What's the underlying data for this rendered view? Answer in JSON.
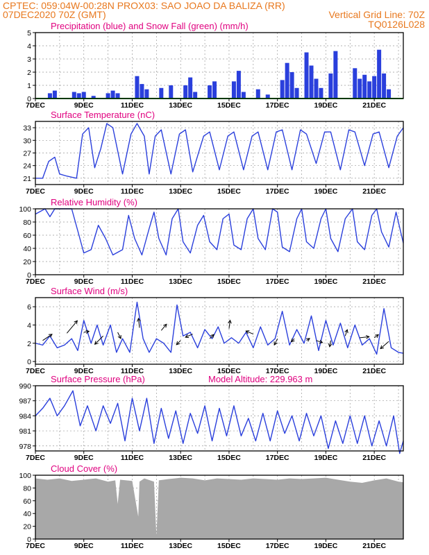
{
  "header": {
    "line1_left": "CPTEC:   059:04W-00:28N  PROX03: SAO JOAO DA BALIZA (RR)",
    "line2_left": "07DEC2020 70Z (GMT)",
    "line2_right": "Vertical Grid Line: 70Z",
    "line3_right": "TQ0126L028"
  },
  "colors": {
    "header": "#e8781e",
    "title": "#e0007f",
    "line": "#2a3fdc",
    "bar": "#2a3fdc",
    "snow": "#00a000",
    "cloud": "#a8a8a8"
  },
  "x_tick_labels": [
    "7DEC",
    "9DEC",
    "11DEC",
    "13DEC",
    "15DEC",
    "17DEC",
    "19DEC",
    "21DEC"
  ],
  "chart_data": [
    {
      "id": "precip",
      "type": "bar",
      "title": "Precipitation (blue) and Snow Fall (green) (mm/h)",
      "x_range": [
        7,
        22.2
      ],
      "ylim": [
        0,
        5
      ],
      "yticks": [
        0,
        1,
        2,
        3,
        4,
        5
      ],
      "series": [
        {
          "x": [
            7.6,
            7.8,
            8.6,
            8.8,
            9.0,
            9.4,
            10.0,
            10.2,
            10.4,
            11.2,
            11.4,
            11.6,
            12.2,
            12.6,
            13.2,
            13.4,
            13.6,
            14.2,
            14.4,
            15.2,
            15.4,
            15.6,
            16.2,
            16.6,
            17.2,
            17.4,
            17.6,
            17.8,
            18.2,
            18.4,
            18.6,
            18.8,
            19.2,
            19.4,
            20.2,
            20.4,
            20.6,
            20.8,
            21.0,
            21.2,
            21.4,
            21.6
          ],
          "values": [
            0.4,
            0.6,
            0.5,
            0.4,
            0.5,
            0.2,
            0.4,
            0.6,
            0.4,
            1.7,
            1.1,
            0.7,
            0.8,
            1.0,
            1.0,
            1.6,
            0.5,
            1.0,
            1.3,
            1.3,
            2.1,
            0.5,
            0.7,
            0.3,
            1.4,
            2.7,
            2.0,
            0.8,
            3.5,
            2.5,
            1.5,
            0.8,
            1.9,
            3.6,
            2.3,
            1.5,
            1.8,
            1.3,
            1.7,
            3.7,
            1.9,
            0.7
          ]
        }
      ],
      "snow": 0
    },
    {
      "id": "temperature",
      "type": "line",
      "title": "Surface Temperature (nC)",
      "x_range": [
        7,
        22.2
      ],
      "ylim": [
        19.5,
        34.5
      ],
      "yticks": [
        21,
        24,
        27,
        30,
        33
      ],
      "series": [
        {
          "x": [
            7.0,
            7.3,
            7.55,
            7.8,
            8.0,
            8.3,
            8.7,
            8.95,
            9.2,
            9.45,
            9.7,
            9.95,
            10.2,
            10.6,
            10.95,
            11.2,
            11.5,
            11.7,
            11.95,
            12.2,
            12.6,
            12.95,
            13.2,
            13.5,
            13.95,
            14.2,
            14.6,
            14.95,
            15.2,
            15.6,
            15.95,
            16.2,
            16.6,
            16.95,
            17.2,
            17.6,
            17.95,
            18.2,
            18.6,
            18.95,
            19.2,
            19.6,
            19.95,
            20.2,
            20.6,
            20.95,
            21.2,
            21.6,
            21.95,
            22.2
          ],
          "values": [
            21.0,
            21.0,
            25.0,
            26.0,
            22.0,
            21.5,
            21.0,
            31.5,
            33.0,
            23.5,
            28.0,
            34.0,
            33.0,
            22.0,
            31.5,
            34.0,
            31.0,
            22.0,
            31.0,
            32.5,
            22.0,
            31.5,
            32.5,
            22.5,
            31.0,
            32.0,
            23.0,
            31.0,
            32.0,
            23.0,
            31.0,
            32.0,
            23.0,
            32.0,
            32.5,
            23.0,
            32.5,
            31.5,
            24.5,
            32.0,
            32.0,
            23.0,
            32.5,
            32.0,
            24.0,
            31.5,
            32.0,
            23.5,
            31.0,
            33.0
          ]
        }
      ]
    },
    {
      "id": "humidity",
      "type": "line",
      "title": "Relative Humidity (%)",
      "x_range": [
        7,
        22.2
      ],
      "ylim": [
        0,
        100
      ],
      "yticks": [
        0,
        20,
        40,
        60,
        80,
        100
      ],
      "series": [
        {
          "x": [
            7.0,
            7.4,
            7.6,
            7.8,
            8.2,
            8.5,
            8.8,
            9.0,
            9.3,
            9.6,
            9.9,
            10.2,
            10.6,
            10.85,
            11.1,
            11.4,
            11.7,
            11.9,
            12.1,
            12.4,
            12.65,
            12.9,
            13.1,
            13.4,
            13.7,
            13.95,
            14.2,
            14.5,
            14.75,
            15.0,
            15.2,
            15.5,
            15.75,
            16.0,
            16.2,
            16.5,
            16.8,
            17.0,
            17.2,
            17.5,
            17.8,
            18.0,
            18.2,
            18.5,
            18.8,
            19.0,
            19.2,
            19.5,
            19.8,
            20.1,
            20.3,
            20.6,
            20.9,
            21.1,
            21.3,
            21.6,
            21.9,
            22.2
          ],
          "values": [
            92,
            100,
            88,
            100,
            100,
            100,
            60,
            33,
            38,
            75,
            55,
            30,
            38,
            90,
            55,
            30,
            70,
            95,
            55,
            30,
            85,
            100,
            50,
            33,
            75,
            90,
            50,
            38,
            85,
            92,
            45,
            38,
            85,
            100,
            55,
            38,
            100,
            95,
            42,
            35,
            85,
            100,
            50,
            40,
            85,
            100,
            55,
            35,
            85,
            100,
            50,
            38,
            90,
            100,
            65,
            42,
            95,
            48
          ]
        }
      ]
    },
    {
      "id": "wind",
      "type": "line",
      "title": "Surface Wind (m/s)",
      "x_range": [
        7,
        22.2
      ],
      "ylim": [
        -0.3,
        7
      ],
      "yticks": [
        0,
        2,
        4,
        6
      ],
      "series": [
        {
          "x": [
            7.0,
            7.3,
            7.6,
            7.9,
            8.2,
            8.5,
            8.75,
            9.0,
            9.3,
            9.55,
            9.8,
            10.1,
            10.35,
            10.6,
            10.9,
            11.2,
            11.45,
            11.7,
            12.0,
            12.3,
            12.6,
            12.85,
            13.1,
            13.4,
            13.7,
            14.0,
            14.3,
            14.55,
            14.8,
            15.1,
            15.4,
            15.7,
            16.0,
            16.3,
            16.6,
            16.9,
            17.2,
            17.5,
            17.8,
            18.1,
            18.4,
            18.7,
            19.0,
            19.3,
            19.6,
            19.9,
            20.2,
            20.5,
            20.8,
            21.1,
            21.4,
            21.7,
            22.0,
            22.2
          ],
          "values": [
            2.0,
            1.8,
            2.8,
            1.5,
            1.8,
            2.5,
            1.2,
            4.5,
            2.0,
            4.0,
            1.8,
            4.0,
            1.0,
            2.5,
            1.0,
            6.5,
            2.5,
            1.0,
            2.5,
            2.0,
            1.0,
            6.2,
            2.8,
            3.2,
            1.5,
            3.5,
            2.5,
            3.8,
            2.0,
            2.6,
            2.0,
            3.2,
            1.5,
            3.8,
            1.8,
            2.5,
            5.5,
            1.8,
            3.5,
            2.0,
            5.0,
            1.2,
            4.5,
            1.8,
            4.2,
            1.5,
            4.0,
            1.8,
            2.5,
            0.8,
            5.8,
            1.5,
            1.0,
            0.9
          ]
        }
      ],
      "vectors": {
        "x": [
          7.3,
          8.3,
          9.0,
          9.8,
          10.4,
          11.3,
          12.2,
          13.0,
          13.5,
          14.2,
          15.0,
          16.0,
          17.0,
          17.7,
          18.2,
          18.6,
          19.2,
          19.8,
          20.4,
          21.0,
          21.6
        ],
        "u": [
          0.9,
          1.0,
          0.5,
          -0.8,
          0.3,
          -0.1,
          0.5,
          -0.4,
          -0.7,
          0.4,
          0.1,
          -0.7,
          -0.3,
          -0.3,
          0.3,
          0.6,
          -0.1,
          0.2,
          0.9,
          0.4,
          -0.8
        ],
        "v": [
          0.6,
          1.2,
          0.1,
          -0.8,
          -0.6,
          0.9,
          0.6,
          -0.4,
          -0.3,
          0.4,
          0.8,
          0.3,
          -0.6,
          -0.3,
          0.2,
          -0.2,
          -0.6,
          0.6,
          0.1,
          0.3,
          -0.7
        ],
        "y": [
          2.3,
          3.1,
          3.2,
          2.8,
          3.2,
          3.7,
          3.4,
          2.3,
          3.0,
          2.5,
          3.6,
          3.0,
          2.5,
          2.5,
          2.3,
          2.3,
          2.3,
          2.8,
          2.6,
          2.6,
          2.2
        ]
      }
    },
    {
      "id": "pressure",
      "type": "line",
      "title": "Surface Pressure (hPa)",
      "subtitle": "Model Altitude: 229.963 m",
      "x_range": [
        7,
        22.2
      ],
      "ylim": [
        977,
        990
      ],
      "yticks": [
        978,
        981,
        984,
        987,
        990
      ],
      "series": [
        {
          "x": [
            7.0,
            7.3,
            7.6,
            7.9,
            8.2,
            8.55,
            8.85,
            9.15,
            9.5,
            9.8,
            10.1,
            10.4,
            10.7,
            11.0,
            11.3,
            11.6,
            11.9,
            12.2,
            12.5,
            12.8,
            13.1,
            13.4,
            13.7,
            14.0,
            14.3,
            14.6,
            14.9,
            15.2,
            15.5,
            15.8,
            16.1,
            16.4,
            16.7,
            17.0,
            17.3,
            17.6,
            17.9,
            18.2,
            18.5,
            18.8,
            19.1,
            19.4,
            19.7,
            20.0,
            20.3,
            20.6,
            20.9,
            21.2,
            21.5,
            21.8,
            22.05,
            22.2
          ],
          "values": [
            984,
            985.5,
            987.5,
            984,
            986,
            989,
            982,
            986,
            981,
            986,
            982.5,
            986.5,
            979,
            987.5,
            981,
            987.5,
            978.5,
            985.5,
            979.5,
            985,
            978.5,
            984.5,
            980.5,
            986,
            979,
            985.5,
            980,
            986,
            980,
            983.5,
            979,
            984.5,
            979,
            985,
            980.5,
            984,
            979,
            984.5,
            980,
            984,
            977.5,
            983,
            978.5,
            984,
            978.5,
            984,
            978,
            983,
            978,
            984,
            976.5,
            979
          ]
        }
      ]
    },
    {
      "id": "cloud",
      "type": "area",
      "title": "Cloud Cover (%)",
      "x_range": [
        7,
        22.2
      ],
      "ylim": [
        0,
        100
      ],
      "yticks": [
        0,
        20,
        40,
        60,
        80,
        100
      ],
      "series": [
        {
          "x": [
            7.0,
            7.5,
            8.0,
            8.5,
            9.0,
            9.5,
            10.0,
            10.3,
            10.4,
            10.5,
            11.0,
            11.25,
            11.3,
            11.5,
            11.9,
            12.0,
            12.1,
            12.5,
            13.0,
            13.5,
            14.0,
            14.5,
            15.0,
            15.5,
            16.0,
            16.5,
            17.0,
            17.5,
            18.0,
            18.5,
            19.0,
            19.5,
            20.0,
            20.5,
            21.0,
            21.5,
            22.0,
            22.2
          ],
          "values": [
            95,
            93,
            95,
            91,
            93,
            95,
            90,
            92,
            55,
            93,
            91,
            35,
            90,
            95,
            90,
            5,
            92,
            94,
            96,
            95,
            92,
            95,
            94,
            93,
            95,
            94,
            93,
            95,
            94,
            95,
            96,
            93,
            90,
            88,
            92,
            95,
            90,
            89
          ]
        }
      ]
    }
  ]
}
